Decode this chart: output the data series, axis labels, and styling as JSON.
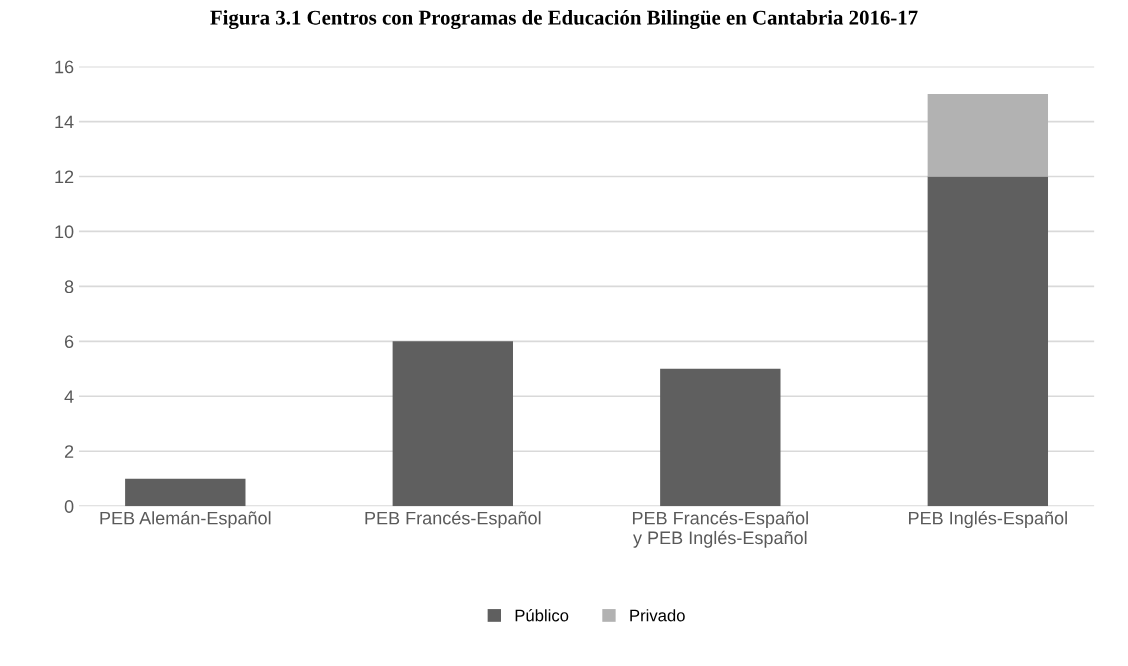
{
  "chart_data": {
    "type": "bar",
    "title": "Figura 3.1 Centros con Programas de Educación Bilingüe en Cantabria 2016-17",
    "categories": [
      "PEB Alemán-Español",
      "PEB Francés-Español",
      "PEB Francés-Español\ny PEB Inglés-Español",
      "PEB Inglés-Español"
    ],
    "series": [
      {
        "name": "Público",
        "color": "#5f5f5f",
        "values": [
          1,
          6,
          5,
          12
        ]
      },
      {
        "name": "Privado",
        "color": "#b2b2b2",
        "values": [
          0,
          0,
          0,
          3
        ]
      }
    ],
    "stacked": true,
    "ylim": [
      0,
      16
    ],
    "yticks": [
      0,
      2,
      4,
      6,
      8,
      10,
      12,
      14,
      16
    ],
    "grid": "y",
    "legend": "bottom"
  }
}
